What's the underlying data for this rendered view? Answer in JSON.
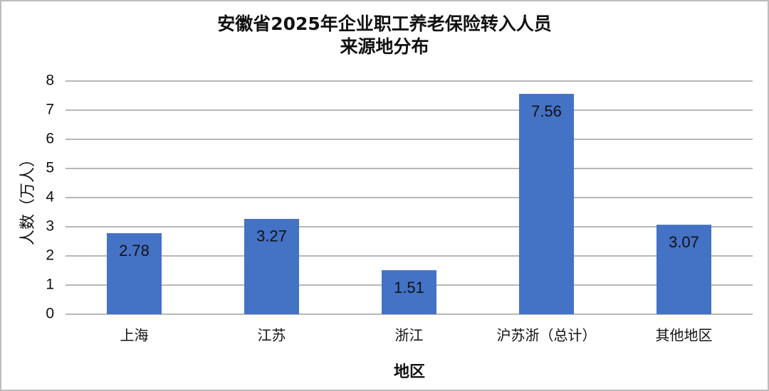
{
  "chart_data": {
    "type": "bar",
    "title_line1": "安徽省2025年企业职工养老保险转入人员",
    "title_line2": "来源地分布",
    "xlabel": "地区",
    "ylabel": "人数（万人）",
    "categories": [
      "上海",
      "江苏",
      "浙江",
      "沪苏浙（总计）",
      "其他地区"
    ],
    "values": [
      2.78,
      3.27,
      1.51,
      7.56,
      3.07
    ],
    "data_labels": [
      "2.78",
      "3.27",
      "1.51",
      "7.56",
      "3.07"
    ],
    "ylim": [
      0,
      8
    ],
    "yticks": [
      0,
      1,
      2,
      3,
      4,
      5,
      6,
      7,
      8
    ],
    "grid": true,
    "legend": "none",
    "bar_color": "#4472C4",
    "grid_color": "#8c8c8c"
  }
}
